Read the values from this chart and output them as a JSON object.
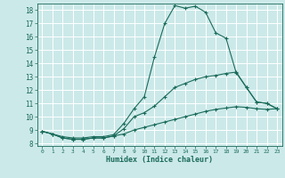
{
  "xlabel": "Humidex (Indice chaleur)",
  "ylabel": "",
  "xlim": [
    -0.5,
    23.5
  ],
  "ylim": [
    7.8,
    18.5
  ],
  "yticks": [
    8,
    9,
    10,
    11,
    12,
    13,
    14,
    15,
    16,
    17,
    18
  ],
  "xticks": [
    0,
    1,
    2,
    3,
    4,
    5,
    6,
    7,
    8,
    9,
    10,
    11,
    12,
    13,
    14,
    15,
    16,
    17,
    18,
    19,
    20,
    21,
    22,
    23
  ],
  "background_color": "#cce9e9",
  "grid_color": "#ffffff",
  "line_color": "#1a6b5a",
  "lines": [
    {
      "x": [
        0,
        1,
        2,
        3,
        4,
        5,
        6,
        7,
        8,
        9,
        10,
        11,
        12,
        13,
        14,
        15,
        16,
        17,
        18,
        19,
        20,
        21,
        22,
        23
      ],
      "y": [
        8.9,
        8.7,
        8.5,
        8.4,
        8.4,
        8.5,
        8.5,
        8.65,
        9.5,
        10.6,
        11.5,
        14.5,
        17.0,
        18.35,
        18.15,
        18.3,
        17.85,
        16.3,
        15.9,
        13.3,
        12.2,
        11.1,
        11.0,
        10.6
      ]
    },
    {
      "x": [
        0,
        1,
        2,
        3,
        4,
        5,
        6,
        7,
        8,
        9,
        10,
        11,
        12,
        13,
        14,
        15,
        16,
        17,
        18,
        19,
        20,
        21,
        22,
        23
      ],
      "y": [
        8.9,
        8.7,
        8.4,
        8.3,
        8.3,
        8.4,
        8.4,
        8.55,
        9.1,
        10.0,
        10.3,
        10.8,
        11.5,
        12.2,
        12.5,
        12.8,
        13.0,
        13.1,
        13.25,
        13.35,
        12.2,
        11.1,
        11.0,
        10.6
      ]
    },
    {
      "x": [
        0,
        1,
        2,
        3,
        4,
        5,
        6,
        7,
        8,
        9,
        10,
        11,
        12,
        13,
        14,
        15,
        16,
        17,
        18,
        19,
        20,
        21,
        22,
        23
      ],
      "y": [
        8.9,
        8.7,
        8.4,
        8.3,
        8.3,
        8.4,
        8.4,
        8.55,
        8.7,
        9.0,
        9.2,
        9.4,
        9.6,
        9.8,
        10.0,
        10.2,
        10.4,
        10.55,
        10.65,
        10.75,
        10.7,
        10.6,
        10.55,
        10.6
      ]
    }
  ]
}
